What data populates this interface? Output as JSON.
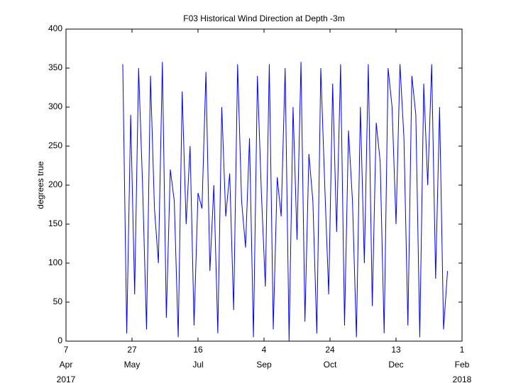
{
  "chart_data": {
    "type": "line",
    "title": "F03 Historical Wind Direction at Depth -3m",
    "y_label": "degrees true",
    "xlim": [
      "2017-04-07",
      "2018-02-01"
    ],
    "xticks": [
      {
        "value": "2017-04-07",
        "label": [
          "7",
          "Apr",
          "2017"
        ]
      },
      {
        "value": "2017-05-27",
        "label": [
          "27",
          "May"
        ]
      },
      {
        "value": "2017-07-16",
        "label": [
          "16",
          "Jul"
        ]
      },
      {
        "value": "2017-09-04",
        "label": [
          "4",
          "Sep"
        ]
      },
      {
        "value": "2017-10-24",
        "label": [
          "24",
          "Oct"
        ]
      },
      {
        "value": "2017-12-13",
        "label": [
          "13",
          "Dec"
        ]
      },
      {
        "value": "2018-02-01",
        "label": [
          "1",
          "Feb",
          "2018"
        ]
      }
    ],
    "ylim": [
      0,
      400
    ],
    "yticks": [
      0,
      50,
      100,
      150,
      200,
      250,
      300,
      350,
      400
    ],
    "x": [
      "2017-05-20",
      "2017-05-23",
      "2017-05-26",
      "2017-05-29",
      "2017-06-01",
      "2017-06-04",
      "2017-06-07",
      "2017-06-10",
      "2017-06-13",
      "2017-06-16",
      "2017-06-19",
      "2017-06-22",
      "2017-06-25",
      "2017-06-28",
      "2017-07-01",
      "2017-07-04",
      "2017-07-07",
      "2017-07-10",
      "2017-07-13",
      "2017-07-16",
      "2017-07-19",
      "2017-07-22",
      "2017-07-25",
      "2017-07-28",
      "2017-07-31",
      "2017-08-03",
      "2017-08-06",
      "2017-08-09",
      "2017-08-12",
      "2017-08-15",
      "2017-08-18",
      "2017-08-21",
      "2017-08-24",
      "2017-08-27",
      "2017-08-30",
      "2017-09-02",
      "2017-09-05",
      "2017-09-08",
      "2017-09-11",
      "2017-09-14",
      "2017-09-17",
      "2017-09-20",
      "2017-09-23",
      "2017-09-26",
      "2017-09-29",
      "2017-10-02",
      "2017-10-05",
      "2017-10-08",
      "2017-10-11",
      "2017-10-14",
      "2017-10-17",
      "2017-10-20",
      "2017-10-23",
      "2017-10-26",
      "2017-10-29",
      "2017-11-01",
      "2017-11-04",
      "2017-11-07",
      "2017-11-10",
      "2017-11-13",
      "2017-11-16",
      "2017-11-19",
      "2017-11-22",
      "2017-11-25",
      "2017-11-28",
      "2017-12-01",
      "2017-12-04",
      "2017-12-07",
      "2017-12-10",
      "2017-12-13",
      "2017-12-16",
      "2017-12-19",
      "2017-12-22",
      "2017-12-25",
      "2017-12-28",
      "2017-12-31",
      "2018-01-03",
      "2018-01-06",
      "2018-01-09",
      "2018-01-12",
      "2018-01-15",
      "2018-01-18",
      "2018-01-21"
    ],
    "series": [
      {
        "color": "#0000ff",
        "values": [
          355,
          10,
          290,
          60,
          350,
          200,
          15,
          340,
          170,
          100,
          358,
          30,
          220,
          180,
          5,
          320,
          150,
          250,
          20,
          190,
          170,
          345,
          90,
          200,
          10,
          300,
          160,
          215,
          40,
          355,
          180,
          120,
          260,
          5,
          340,
          190,
          70,
          355,
          15,
          210,
          160,
          350,
          0,
          300,
          130,
          358,
          25,
          240,
          180,
          10,
          350,
          200,
          60,
          330,
          140,
          355,
          20,
          270,
          180,
          5,
          300,
          100,
          355,
          45,
          280,
          230,
          10,
          350,
          300,
          150,
          355,
          260,
          20,
          340,
          290,
          5,
          330,
          200,
          355,
          80,
          300,
          15,
          90
        ]
      }
    ]
  }
}
